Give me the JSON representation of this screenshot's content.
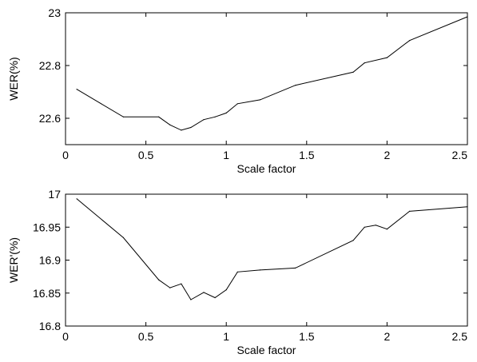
{
  "chart_data": [
    {
      "type": "line",
      "xlabel": "Scale factor",
      "ylabel": "WER(%)",
      "xlim": [
        0,
        2.5
      ],
      "ylim": [
        22.5,
        23
      ],
      "xticks": [
        0,
        0.5,
        1,
        1.5,
        2,
        2.5
      ],
      "xtick_labels": [
        "0",
        "0.5",
        "1",
        "1.5",
        "2",
        "2.5"
      ],
      "yticks": [
        22.6,
        22.8,
        23
      ],
      "ytick_labels": [
        "22.6",
        "22.8",
        "23"
      ],
      "grid": false,
      "series": [
        {
          "x": [
            0.07,
            0.36,
            0.58,
            0.65,
            0.72,
            0.78,
            0.86,
            0.93,
            1.0,
            1.07,
            1.21,
            1.43,
            1.79,
            1.86,
            2.0,
            2.14,
            2.5
          ],
          "values": [
            22.71,
            22.605,
            22.605,
            22.575,
            22.555,
            22.565,
            22.595,
            22.605,
            22.62,
            22.655,
            22.67,
            22.725,
            22.775,
            22.81,
            22.83,
            22.895,
            22.985
          ]
        }
      ]
    },
    {
      "type": "line",
      "xlabel": "Scale factor",
      "ylabel": "WER'(%)",
      "xlim": [
        0,
        2.5
      ],
      "ylim": [
        16.8,
        17
      ],
      "xticks": [
        0,
        0.5,
        1,
        1.5,
        2,
        2.5
      ],
      "xtick_labels": [
        "0",
        "0.5",
        "1",
        "1.5",
        "2",
        "2.5"
      ],
      "yticks": [
        16.8,
        16.85,
        16.9,
        16.95,
        17
      ],
      "ytick_labels": [
        "16.8",
        "16.85",
        "16.9",
        "16.95",
        "17"
      ],
      "grid": false,
      "series": [
        {
          "x": [
            0.07,
            0.36,
            0.58,
            0.65,
            0.72,
            0.78,
            0.86,
            0.93,
            1.0,
            1.07,
            1.21,
            1.43,
            1.79,
            1.86,
            1.93,
            2.0,
            2.14,
            2.5
          ],
          "values": [
            16.993,
            16.934,
            16.87,
            16.858,
            16.864,
            16.84,
            16.851,
            16.843,
            16.855,
            16.882,
            16.885,
            16.888,
            16.93,
            16.95,
            16.953,
            16.947,
            16.974,
            16.981
          ]
        }
      ]
    }
  ]
}
